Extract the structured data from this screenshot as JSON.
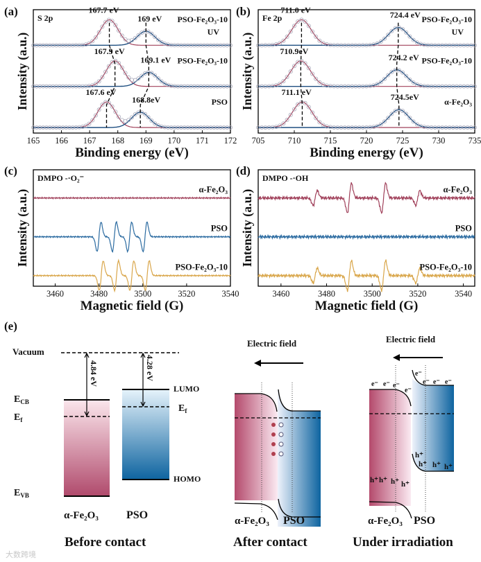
{
  "chart_data": [
    {
      "panel": "(a)",
      "type": "line",
      "title": "S 2p",
      "xlabel": "Binding energy (eV)",
      "ylabel": "Intensity (a.u.)",
      "xlim": [
        165,
        172
      ],
      "xticks": [
        165,
        166,
        167,
        168,
        169,
        170,
        171,
        172
      ],
      "series": [
        {
          "name": "PSO-Fe₂O₃-10",
          "name2": "UV",
          "peaks": [
            167.7,
            169
          ],
          "heights": [
            1,
            0.55
          ],
          "peak_labels": [
            "167.7 eV",
            "169 eV"
          ]
        },
        {
          "name": "PSO-Fe₂O₃-10",
          "name2": "",
          "peaks": [
            167.9,
            169.1
          ],
          "heights": [
            1,
            0.55
          ],
          "peak_labels": [
            "167.9 eV",
            "169.1 eV"
          ]
        },
        {
          "name": "PSO",
          "name2": "",
          "peaks": [
            167.6,
            168.8
          ],
          "heights": [
            1,
            0.6
          ],
          "peak_labels": [
            "167.6 eV",
            "168.8eV"
          ]
        }
      ]
    },
    {
      "panel": "(b)",
      "type": "line",
      "title": "Fe 2p",
      "xlabel": "Binding energy (eV)",
      "ylabel": "Intensity (a.u.)",
      "xlim": [
        705,
        735
      ],
      "xticks": [
        705,
        710,
        715,
        720,
        725,
        730,
        735
      ],
      "series": [
        {
          "name": "PSO-Fe₂O₃-10",
          "name2": "UV",
          "peaks": [
            711.0,
            724.4
          ],
          "heights": [
            1,
            0.7
          ],
          "peak_labels": [
            "711.0 eV",
            "724.4 eV"
          ]
        },
        {
          "name": "PSO-Fe₂O₃-10",
          "name2": "",
          "peaks": [
            710.9,
            724.2
          ],
          "heights": [
            1,
            0.65
          ],
          "peak_labels": [
            "710.9eV",
            "724.2 eV"
          ]
        },
        {
          "name": "α-Fe₂O₃",
          "name2": "",
          "peaks": [
            711.1,
            724.5
          ],
          "heights": [
            1,
            0.7
          ],
          "peak_labels": [
            "711.1 eV",
            "724.5eV"
          ]
        }
      ]
    },
    {
      "panel": "(c)",
      "type": "line",
      "title": "DMPO -·O₂⁻",
      "xlabel": "Magnetic field (G)",
      "ylabel": "Intensity (a.u.)",
      "xlim": [
        3450,
        3540
      ],
      "xticks": [
        3460,
        3480,
        3500,
        3520,
        3540
      ],
      "series": [
        {
          "name": "α-Fe₂O₃",
          "color": "#a0405a",
          "lines": [],
          "amps": []
        },
        {
          "name": "PSO",
          "color": "#2a6aa0",
          "lines": [
            3480,
            3487,
            3494,
            3501
          ],
          "amps": [
            1,
            1,
            1,
            1
          ]
        },
        {
          "name": "PSO-Fe₂O₃-10",
          "color": "#d9a64a",
          "lines": [
            3481,
            3488,
            3495,
            3502
          ],
          "amps": [
            1,
            1,
            1,
            1
          ]
        }
      ]
    },
    {
      "panel": "(d)",
      "type": "line",
      "title": "DMPO -·OH",
      "xlabel": "Magnetic field (G)",
      "ylabel": "Intensity (a.u.)",
      "xlim": [
        3450,
        3545
      ],
      "xticks": [
        3460,
        3480,
        3500,
        3520,
        3540
      ],
      "series": [
        {
          "name": "α-Fe₂O₃",
          "color": "#a0405a",
          "lines": [
            3475,
            3490,
            3505,
            3520
          ],
          "amps": [
            0.5,
            1,
            1,
            0.5
          ]
        },
        {
          "name": "PSO",
          "color": "#2a6aa0",
          "lines": [],
          "amps": []
        },
        {
          "name": "PSO-Fe₂O₃-10",
          "color": "#d9a64a",
          "lines": [
            3475,
            3490,
            3505,
            3520
          ],
          "amps": [
            0.5,
            1,
            1,
            0.5
          ]
        }
      ]
    }
  ],
  "diagram": {
    "label": "(e)",
    "vacuum": "Vacuum",
    "phi_fe": "4.84 eV",
    "phi_pso": "4.28 eV",
    "ecb": {
      "main": "E",
      "sub": "CB"
    },
    "ef": {
      "main": "E",
      "sub": "f"
    },
    "evb": {
      "main": "E",
      "sub": "VB"
    },
    "lumo": "LUMO",
    "homo": "HOMO",
    "fe2o3": "α-Fe₂O₃",
    "pso": "PSO",
    "electric_field": "Electric field",
    "electron": "e⁻",
    "hole": "h⁺",
    "captions": [
      "Before contact",
      "After contact",
      "Under irradiation"
    ]
  },
  "watermark": "大数跨境"
}
